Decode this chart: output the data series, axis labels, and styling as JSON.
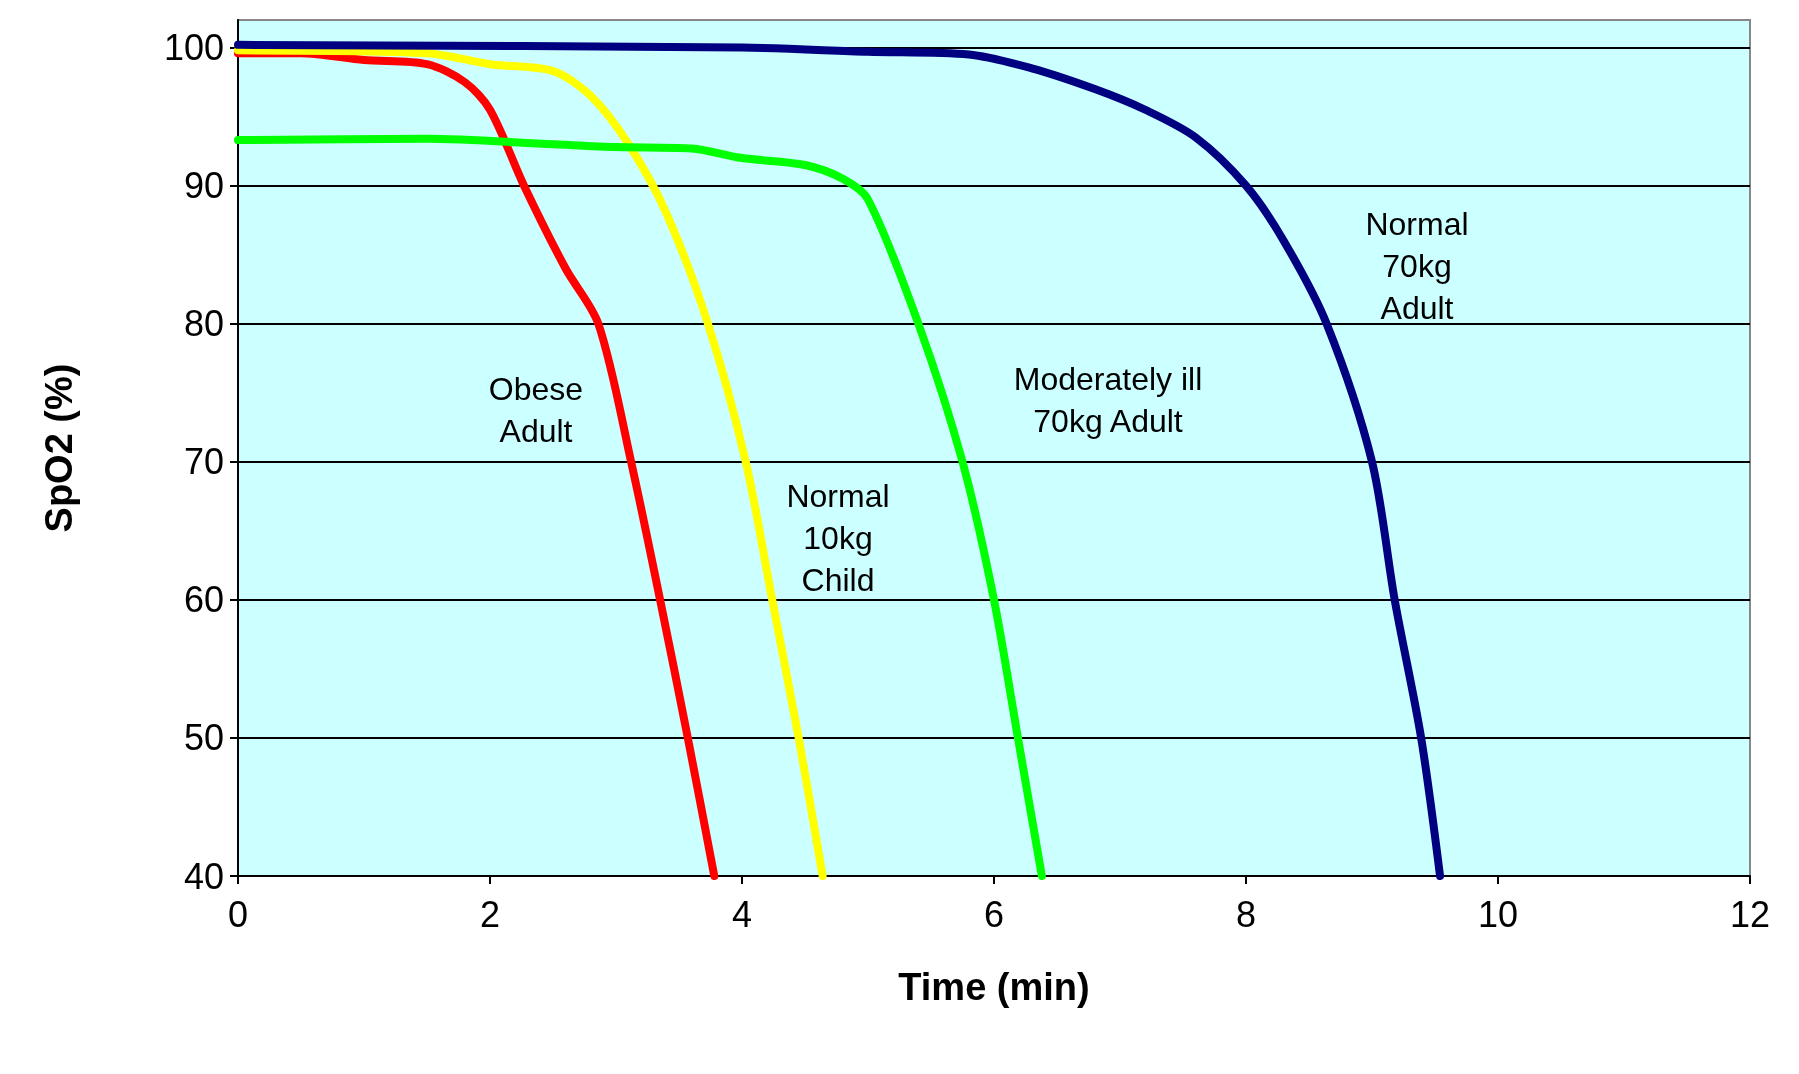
{
  "chart_data": {
    "type": "line",
    "xlabel": "Time (min)",
    "ylabel": "SpO2 (%)",
    "xlim": [
      0,
      12
    ],
    "xticks": [
      0,
      2,
      4,
      6,
      8,
      10,
      12
    ],
    "ylim": [
      40,
      102
    ],
    "yticks": [
      40,
      50,
      60,
      70,
      80,
      90,
      100
    ],
    "grid": "y",
    "marker": "none",
    "line_style": "solid",
    "series": [
      {
        "color": "#ff0000",
        "x": [
          0,
          0.5,
          1,
          1.5,
          1.8,
          2,
          2.27,
          2.6,
          2.86,
          3.12,
          3.35,
          3.57,
          3.78
        ],
        "values": [
          99.6,
          99.6,
          99.1,
          98.8,
          97.5,
          95.5,
          90,
          84,
          80,
          70,
          60,
          50,
          40
        ]
      },
      {
        "color": "#ffff00",
        "x": [
          0,
          1.5,
          2,
          2.5,
          2.8,
          3.1,
          3.4,
          3.73,
          4.03,
          4.24,
          4.45,
          4.64
        ],
        "values": [
          99.8,
          99.6,
          98.8,
          98.3,
          96.5,
          93,
          88,
          80,
          70,
          60,
          50,
          40
        ]
      },
      {
        "color": "#00ff00",
        "x": [
          0,
          1.5,
          2.5,
          3,
          3.6,
          4,
          4.5,
          4.8,
          5,
          5.4,
          5.75,
          6,
          6.19,
          6.38
        ],
        "values": [
          93.3,
          93.4,
          93,
          92.8,
          92.7,
          92,
          91.5,
          90.5,
          89,
          80,
          70,
          60,
          50,
          40
        ]
      },
      {
        "color": "#000080",
        "x": [
          0,
          4,
          5,
          5.8,
          6.3,
          6.8,
          7.2,
          7.6,
          8,
          8.3,
          8.64,
          9,
          9.18,
          9.39,
          9.54
        ],
        "values": [
          100.2,
          100,
          99.7,
          99.5,
          98.5,
          97,
          95.5,
          93.5,
          90,
          86,
          80,
          70,
          60,
          50,
          40
        ]
      }
    ],
    "annotations": [
      "Obese\nAdult",
      "Normal\n10kg\nChild",
      "Moderately ill\n70kg Adult",
      "Normal\n70kg\nAdult"
    ]
  }
}
